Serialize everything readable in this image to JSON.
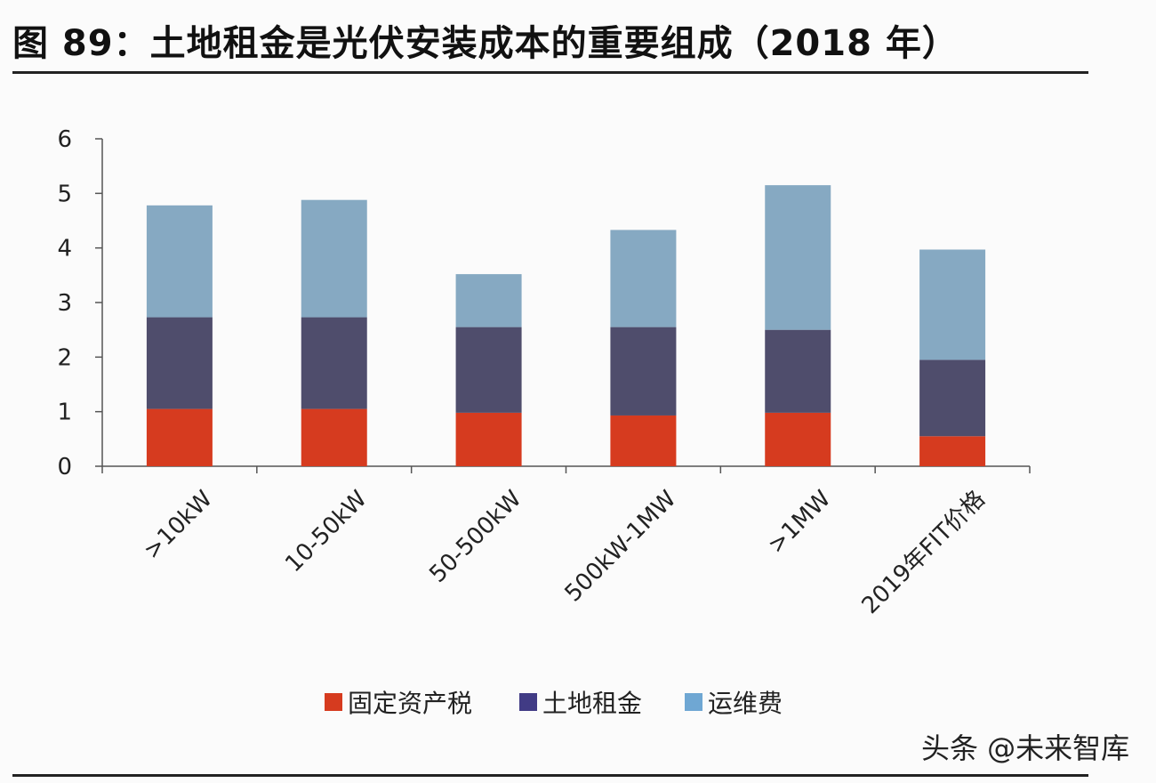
{
  "title": "图 89：土地租金是光伏安装成本的重要组成（2018 年）",
  "watermark": "头条 @未来智库",
  "colors": {
    "fixed_asset_tax": "#d63b1f",
    "land_rent": "#4f4d6c",
    "operation": "#86a9c2",
    "legend_land_rent": "#413b85",
    "legend_operation": "#6fa7d3"
  },
  "chart_data": {
    "type": "bar",
    "stacked": true,
    "categories": [
      ">10kW",
      "10-50kW",
      "50-500kW",
      "500kW-1MW",
      ">1MW",
      "2019年FIT价格"
    ],
    "series": [
      {
        "name": "固定资产税",
        "values": [
          1.05,
          1.05,
          0.98,
          0.93,
          0.98,
          0.55
        ]
      },
      {
        "name": "土地租金",
        "values": [
          1.68,
          1.68,
          1.57,
          1.62,
          1.52,
          1.4
        ]
      },
      {
        "name": "运维费",
        "values": [
          2.05,
          2.15,
          0.97,
          1.78,
          2.65,
          2.02
        ]
      }
    ],
    "yticks": [
      "0",
      "1",
      "2",
      "3",
      "4",
      "5",
      "6"
    ],
    "ylim": [
      0,
      6
    ],
    "legend_position": "bottom"
  }
}
